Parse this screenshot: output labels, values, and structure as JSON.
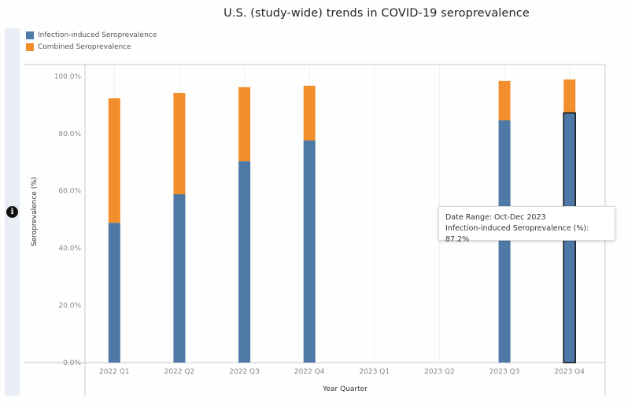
{
  "title": "U.S. (study-wide)  trends in COVID-19 seroprevalence",
  "legend": [
    {
      "label": "Infection-induced Seroprevalence",
      "color": "#4e79a7"
    },
    {
      "label": "Combined Seroprevalence",
      "color": "#f28e2b"
    }
  ],
  "info_icon": "i",
  "tooltip": {
    "line1": "Date Range: Oct-Dec 2023",
    "line2": "Infection-induced Seroprevalence (%): 87.2%"
  },
  "chart_data": {
    "type": "bar",
    "stacked": true,
    "title": "U.S. (study-wide)  trends in COVID-19 seroprevalence",
    "xlabel": "Year Quarter",
    "ylabel": "Seroprevalence (%)",
    "ylim": [
      0,
      100
    ],
    "yticks": [
      "0.0%",
      "20.0%",
      "40.0%",
      "60.0%",
      "80.0%",
      "100.0%"
    ],
    "ytick_values": [
      0,
      20,
      40,
      60,
      80,
      100
    ],
    "categories": [
      "2022 Q1",
      "2022 Q2",
      "2022 Q3",
      "2022 Q4",
      "2023 Q1",
      "2023 Q2",
      "2023 Q3",
      "2023 Q4"
    ],
    "series": [
      {
        "name": "Infection-induced Seroprevalence",
        "color": "#4e79a7",
        "values": [
          48.8,
          58.8,
          70.3,
          77.6,
          null,
          null,
          84.6,
          87.2
        ]
      },
      {
        "name": "Combined Seroprevalence",
        "color": "#f28e2b",
        "values": [
          92.3,
          94.2,
          96.2,
          96.7,
          null,
          null,
          98.4,
          98.9
        ]
      }
    ],
    "highlighted_category": "2023 Q4",
    "legend_position": "top-left",
    "grid": "vertical"
  }
}
